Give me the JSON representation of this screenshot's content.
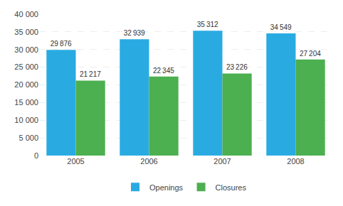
{
  "chart_data": {
    "type": "bar",
    "categories": [
      "2005",
      "2006",
      "2007",
      "2008"
    ],
    "series": [
      {
        "name": "Openings",
        "color": "#29ABE2",
        "values": [
          29876,
          32939,
          35312,
          34549
        ],
        "value_labels": [
          "29 876",
          "32 939",
          "35 312",
          "34 549"
        ]
      },
      {
        "name": "Closures",
        "color": "#4CAF50",
        "values": [
          21217,
          22345,
          23226,
          27204
        ],
        "value_labels": [
          "21 217",
          "22 345",
          "23 226",
          "27 204"
        ]
      }
    ],
    "ylim": [
      0,
      40000
    ],
    "yticks": [
      0,
      {
        "value": 5000,
        "label": "5 000"
      },
      {
        "value": 10000,
        "label": "10 000"
      },
      {
        "value": 15000,
        "label": "15 000"
      },
      {
        "value": 20000,
        "label": "20 000"
      },
      {
        "value": 25000,
        "label": "25 000"
      },
      {
        "value": 30000,
        "label": "30 000"
      },
      {
        "value": 35000,
        "label": "35 000"
      },
      {
        "value": 40000,
        "label": "40 000"
      }
    ],
    "grid": true,
    "legend": "bottom",
    "data_labels": true
  }
}
